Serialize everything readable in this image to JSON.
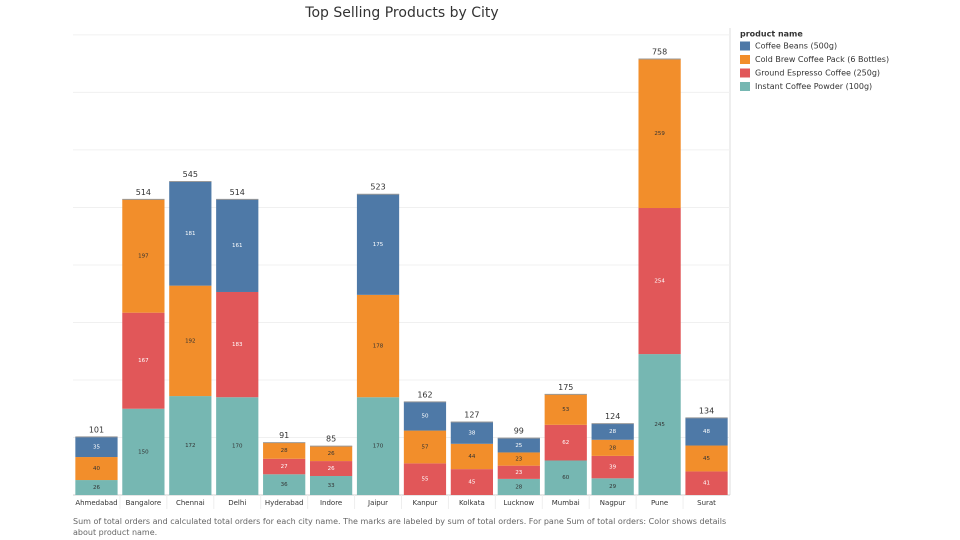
{
  "chart_data": {
    "type": "stacked_bar",
    "title": "Top Selling Products by City",
    "categories": [
      "Ahmedabad",
      "Bangalore",
      "Chennai",
      "Delhi",
      "Hyderabad",
      "Indore",
      "Jaipur",
      "Kanpur",
      "Kolkata",
      "Lucknow",
      "Mumbai",
      "Nagpur",
      "Pune",
      "Surat"
    ],
    "series": [
      {
        "name": "Coffee Beans (500g)",
        "color": "#4e79a7",
        "values": [
          35,
          null,
          181,
          161,
          null,
          null,
          175,
          50,
          38,
          25,
          null,
          28,
          null,
          48
        ]
      },
      {
        "name": "Cold Brew Coffee Pack (6 Bottles)",
        "color": "#f28e2b",
        "values": [
          40,
          197,
          192,
          null,
          28,
          26,
          178,
          57,
          44,
          23,
          53,
          28,
          259,
          45
        ]
      },
      {
        "name": "Ground Espresso Coffee (250g)",
        "color": "#e15759",
        "values": [
          null,
          167,
          null,
          183,
          27,
          26,
          null,
          55,
          45,
          23,
          62,
          39,
          254,
          41
        ]
      },
      {
        "name": "Instant Coffee Powder (100g)",
        "color": "#76b7b2",
        "values": [
          26,
          150,
          172,
          170,
          36,
          33,
          170,
          null,
          null,
          28,
          60,
          29,
          245,
          null
        ]
      }
    ],
    "totals": [
      101,
      514,
      545,
      514,
      91,
      85,
      523,
      162,
      127,
      99,
      175,
      124,
      758,
      134
    ],
    "ylim": [
      0,
      812
    ],
    "ygrid": [
      100,
      200,
      300,
      400,
      500,
      600,
      700,
      800
    ],
    "legend_title": "product name",
    "legend_position": "right",
    "caption": "Sum of total orders and calculated total orders for each city name.  The marks are labeled by sum of total orders.  For pane Sum of total orders:  Color shows details about product name."
  }
}
